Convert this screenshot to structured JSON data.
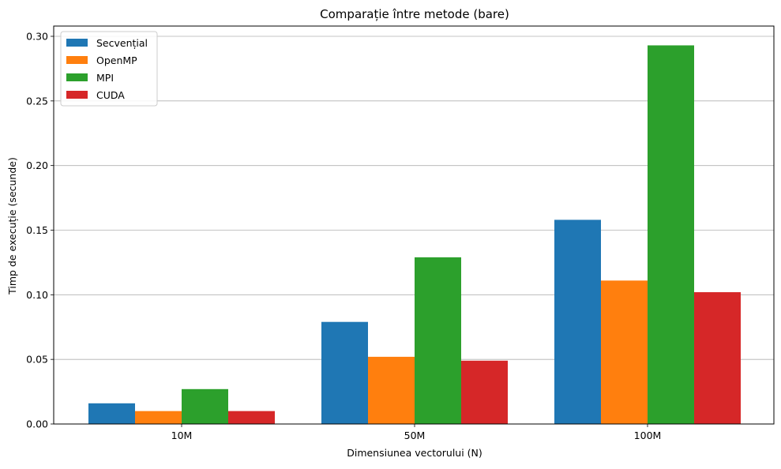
{
  "chart_data": {
    "type": "bar",
    "title": "Comparație între metode (bare)",
    "xlabel": "Dimensiunea vectorului (N)",
    "ylabel": "Timp de execuție (secunde)",
    "categories": [
      "10M",
      "50M",
      "100M"
    ],
    "ylim": [
      0,
      0.3
    ],
    "yticks": [
      "0.00",
      "0.05",
      "0.10",
      "0.15",
      "0.20",
      "0.25",
      "0.30"
    ],
    "grid": "y",
    "legend_position": "top-left",
    "series": [
      {
        "name": "Secvențial",
        "color": "#1f77b4",
        "values": [
          0.016,
          0.079,
          0.158
        ]
      },
      {
        "name": "OpenMP",
        "color": "#ff7f0e",
        "values": [
          0.01,
          0.052,
          0.111
        ]
      },
      {
        "name": "MPI",
        "color": "#2ca02c",
        "values": [
          0.027,
          0.129,
          0.293
        ]
      },
      {
        "name": "CUDA",
        "color": "#d62728",
        "values": [
          0.01,
          0.049,
          0.102
        ]
      }
    ]
  }
}
